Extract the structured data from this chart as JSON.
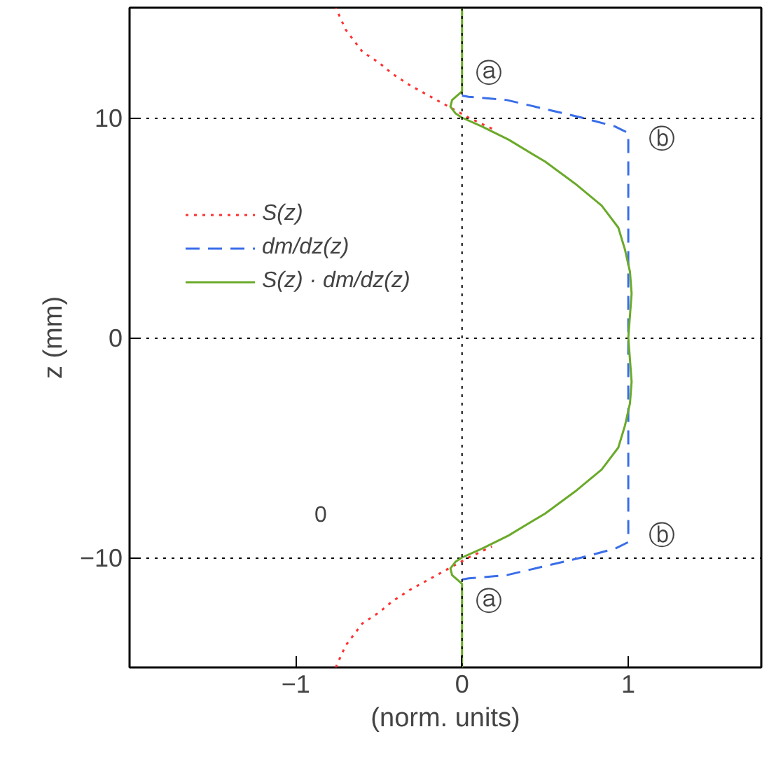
{
  "chart_data": {
    "type": "line",
    "xlabel": "(norm. units)",
    "ylabel": "z (mm)",
    "xlim": [
      -2,
      1.8
    ],
    "ylim": [
      -15,
      15
    ],
    "xticks": [
      -1,
      0,
      1
    ],
    "yticks": [
      -10,
      0,
      10
    ],
    "grid": "y",
    "legend": "top left",
    "ref_lines": [
      {
        "axis": "x",
        "value": 0,
        "line_style": "dotted",
        "color": "#000000"
      }
    ],
    "series": [
      {
        "name": "S(z)",
        "color": "#ff3030",
        "line_style": "dotted",
        "x": [
          -0.76,
          -0.7,
          -0.6,
          -0.5,
          -0.42,
          -0.32,
          -0.2,
          -0.08,
          0.04,
          0.18,
          null,
          0.18,
          0.04,
          -0.08,
          -0.2,
          -0.32,
          -0.42,
          -0.5,
          -0.6,
          -0.7,
          -0.76
        ],
        "values": [
          -15,
          -14,
          -13,
          -12.5,
          -12,
          -11.5,
          -11,
          -10.5,
          -10,
          -9.5,
          null,
          9.5,
          10,
          10.5,
          11,
          11.5,
          12,
          12.5,
          13,
          14,
          15
        ]
      },
      {
        "name": "dm/dz(z)",
        "color": "#3a6ee8",
        "line_style": "dashed",
        "x": [
          0,
          0.04,
          0.27,
          0.72,
          0.92,
          1,
          1,
          1,
          0.92,
          0.72,
          0.27,
          0.04,
          0
        ],
        "values": [
          -11,
          -10.95,
          -10.8,
          -10,
          -9.6,
          -9.3,
          0,
          9.3,
          9.6,
          10,
          10.8,
          10.95,
          11
        ]
      },
      {
        "name": "S(z) · dm/dz(z)",
        "color": "#6aaa2a",
        "line_style": "solid",
        "x": [
          0,
          0,
          -0.06,
          -0.07,
          -0.04,
          0,
          0.12,
          0.28,
          0.5,
          0.68,
          0.84,
          0.94,
          0.98,
          1.01,
          1.02,
          1.01,
          1.0,
          1.01,
          1.02,
          1.01,
          0.98,
          0.94,
          0.84,
          0.68,
          0.5,
          0.28,
          0.12,
          0,
          -0.04,
          -0.07,
          -0.06,
          0,
          0
        ],
        "values": [
          -15,
          -11.2,
          -10.8,
          -10.5,
          -10.2,
          -10,
          -9.6,
          -9,
          -8,
          -7,
          -6,
          -5,
          -4,
          -3,
          -2,
          -1,
          0,
          1,
          2,
          3,
          4,
          5,
          6,
          7,
          8,
          9,
          9.6,
          10,
          10.2,
          10.5,
          10.8,
          11.2,
          15
        ]
      }
    ],
    "annotations": [
      "ⓐ",
      "ⓐ",
      "ⓑ",
      "ⓑ",
      "0"
    ]
  }
}
